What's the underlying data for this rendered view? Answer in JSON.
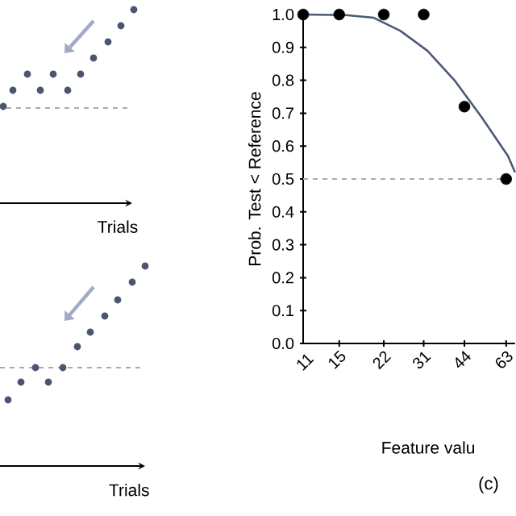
{
  "chart_data": [
    {
      "type": "other",
      "xlabel": "Trials"
    },
    {
      "type": "other",
      "xlabel": "Trials"
    },
    {
      "type": "scatter",
      "xlabel": "Feature valu",
      "ylabel": "Prob. Test < Reference",
      "log": "x",
      "xlim": [
        11,
        68
      ],
      "ylim": [
        0,
        1
      ],
      "xticks": [
        11,
        15,
        22,
        31,
        44,
        63
      ],
      "yticks": [
        {
          "value": 0,
          "label": "0.0"
        },
        {
          "value": 0.1,
          "label": "0.1"
        },
        {
          "value": 0.2,
          "label": "0.2"
        },
        {
          "value": 0.3,
          "label": "0.3"
        },
        {
          "value": 0.4,
          "label": "0.4"
        },
        {
          "value": 0.5,
          "label": "0.5"
        },
        {
          "value": 0.6,
          "label": "0.6"
        },
        {
          "value": 0.7,
          "label": "0.7"
        },
        {
          "value": 0.8,
          "label": "0.8"
        },
        {
          "value": 0.9,
          "label": "0.9"
        },
        {
          "value": 1,
          "label": "1.0"
        }
      ],
      "series": [
        {
          "type": "scatter",
          "color": "#000000",
          "x": [
            11,
            15,
            22,
            31,
            44,
            63
          ],
          "values": [
            1.0,
            1.0,
            1.0,
            1.0,
            0.72,
            0.5
          ]
        },
        {
          "type": "line",
          "color": "#4a5a78",
          "x": [
            11,
            15.9,
            20.2,
            25.4,
            32,
            40.4,
            50.8,
            64,
            68
          ],
          "values": [
            1.0,
            0.998,
            0.99,
            0.95,
            0.89,
            0.8,
            0.69,
            0.57,
            0.52
          ]
        }
      ],
      "ref_lines": [
        {
          "axis": "y",
          "value": 0.5,
          "color": "#aaaaaa",
          "line_style": "dashed"
        }
      ],
      "annotations": [
        "(c)"
      ]
    }
  ]
}
